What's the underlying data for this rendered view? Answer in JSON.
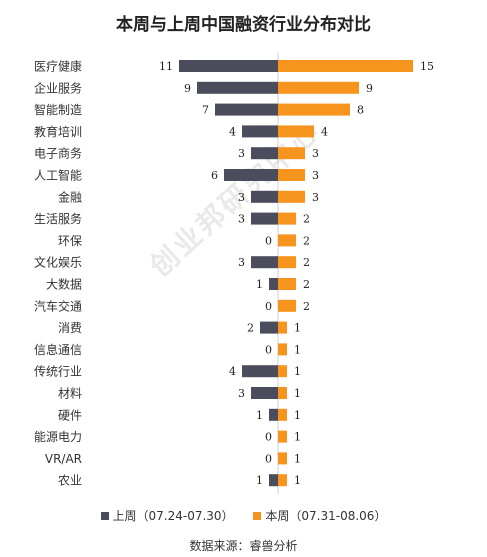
{
  "title": "本周与上周中国融资行业分布对比",
  "watermark": "创业邦研究中心",
  "source": "数据来源：睿兽分析",
  "colors": {
    "last_week": "#4b4c5c",
    "this_week": "#f7941d"
  },
  "chart_data": {
    "type": "bar",
    "orientation": "horizontal-diverging",
    "title": "本周与上周中国融资行业分布对比",
    "categories": [
      "医疗健康",
      "企业服务",
      "智能制造",
      "教育培训",
      "电子商务",
      "人工智能",
      "金融",
      "生活服务",
      "环保",
      "文化娱乐",
      "大数据",
      "汽车交通",
      "消费",
      "信息通信",
      "传统行业",
      "材料",
      "硬件",
      "能源电力",
      "VR/AR",
      "农业"
    ],
    "series": [
      {
        "name": "上周（07.24-07.30）",
        "side": "left",
        "values": [
          11,
          9,
          7,
          4,
          3,
          6,
          3,
          3,
          0,
          3,
          1,
          0,
          2,
          0,
          4,
          3,
          1,
          0,
          0,
          1
        ]
      },
      {
        "name": "本周（07.31-08.06）",
        "side": "right",
        "values": [
          15,
          9,
          8,
          4,
          3,
          3,
          3,
          2,
          2,
          2,
          2,
          2,
          1,
          1,
          1,
          1,
          1,
          1,
          1,
          1
        ]
      }
    ],
    "xlim": [
      -15,
      15
    ],
    "data_labels": true,
    "legend": "bottom"
  }
}
